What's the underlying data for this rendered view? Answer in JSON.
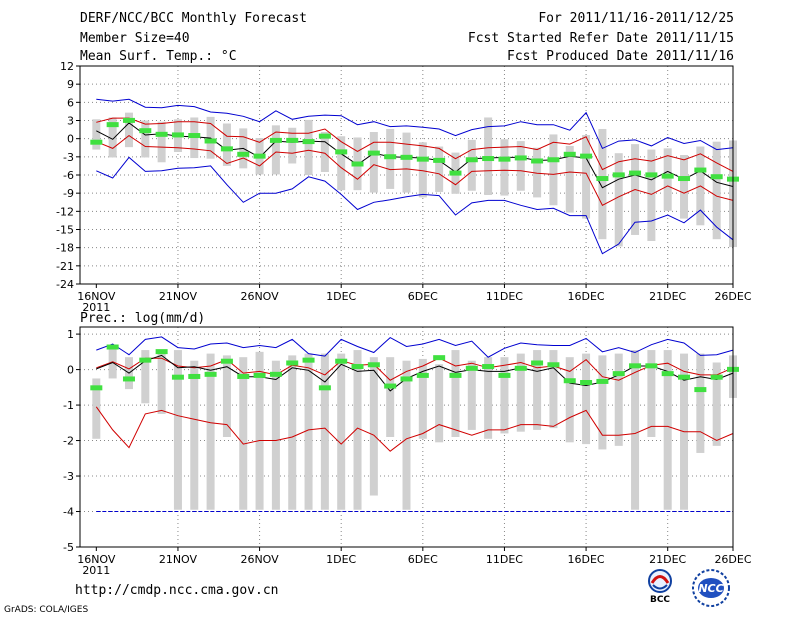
{
  "header": {
    "line1_left": "DERF/NCC/BCC Monthly Forecast",
    "line2_left": "Member Size=40",
    "line3_left": "Mean Surf. Temp.: °C",
    "line1_right": "For 2011/11/16-2011/12/25",
    "line2_right": "Fcst Started Refer Date 2011/11/15",
    "line3_right": "Fcst Produced Date 2011/11/16"
  },
  "footer": {
    "url": "http://cmdp.ncc.cma.gov.cn",
    "credit": "GrADS: COLA/IGES",
    "logo_bcc_text": "BCC",
    "logo_ncc_text": "NCC"
  },
  "colors": {
    "bar": "#d0d0d0",
    "median": "#000000",
    "quartile": "#d00000",
    "extreme": "#0000d0",
    "mark": "#40e040",
    "grid": "#888888"
  },
  "chart_data": [
    {
      "type": "line",
      "name": "temperature",
      "ylabel": "Mean Surf. Temp.: °C",
      "ylim": [
        -24,
        12
      ],
      "yticks": [
        -24,
        -21,
        -18,
        -15,
        -12,
        -9,
        -6,
        -3,
        0,
        3,
        6,
        9,
        12
      ],
      "xticks": [
        "16NOV",
        "21NOV",
        "26NOV",
        "1DEC",
        "6DEC",
        "11DEC",
        "16DEC",
        "21DEC",
        "26DEC"
      ],
      "x_year": "2011",
      "grid": true,
      "days": 40,
      "series": [
        {
          "name": "max",
          "values": [
            6.5,
            6.2,
            6.5,
            5.2,
            5.1,
            5.5,
            5.3,
            4.4,
            4.2,
            3.7,
            2.8,
            4.6,
            3.2,
            3.7,
            3.9,
            3.8,
            2.3,
            2.8,
            2.0,
            2.1,
            1.9,
            1.6,
            0.5,
            1.5,
            2.0,
            2.1,
            2.8,
            2.3,
            2.3,
            1.4,
            4.3,
            -1.6,
            -0.4,
            -0.2,
            -1.2,
            0.2,
            -0.8,
            -0.3,
            -1.8,
            -1.5
          ]
        },
        {
          "name": "upper",
          "values": [
            2.7,
            3.4,
            3.4,
            2.4,
            2.5,
            2.8,
            2.8,
            2.5,
            0.4,
            0.3,
            -0.6,
            1.1,
            0.9,
            0.9,
            1.6,
            -0.5,
            -2.1,
            -0.6,
            -0.6,
            -0.9,
            -1.2,
            -1.6,
            -3.3,
            -1.8,
            -1.5,
            -1.4,
            -1.3,
            -1.8,
            -0.6,
            -0.9,
            0.3,
            -5.1,
            -3.8,
            -3.3,
            -3.7,
            -2.8,
            -3.5,
            -2.5,
            -4.0,
            -5.4
          ]
        },
        {
          "name": "median",
          "values": [
            1.3,
            -0.1,
            2.6,
            0.6,
            0.8,
            0.4,
            0.3,
            0.1,
            -1.9,
            -1.6,
            -3.1,
            -0.4,
            -0.6,
            -0.4,
            -0.5,
            -2.5,
            -4.3,
            -2.4,
            -3.0,
            -3.1,
            -3.2,
            -3.6,
            -5.5,
            -3.3,
            -3.2,
            -3.1,
            -3.1,
            -3.6,
            -3.5,
            -2.9,
            -3.2,
            -8.1,
            -6.7,
            -6.0,
            -6.8,
            -5.4,
            -6.7,
            -5.3,
            -7.2,
            -7.9
          ]
        },
        {
          "name": "lower",
          "values": [
            -0.5,
            -1.6,
            0.5,
            -1.3,
            -1.4,
            -1.5,
            -1.7,
            -2.0,
            -4.1,
            -3.2,
            -4.5,
            -2.2,
            -2.4,
            -1.9,
            -2.4,
            -4.8,
            -6.7,
            -4.3,
            -5.1,
            -5.0,
            -5.3,
            -5.8,
            -7.6,
            -5.4,
            -5.3,
            -5.2,
            -5.3,
            -5.7,
            -5.9,
            -5.5,
            -5.7,
            -11.0,
            -9.6,
            -8.4,
            -9.2,
            -7.8,
            -9.0,
            -7.8,
            -9.5,
            -10.2
          ]
        },
        {
          "name": "min",
          "values": [
            -5.3,
            -6.5,
            -3.1,
            -5.4,
            -5.3,
            -4.9,
            -4.8,
            -4.5,
            -7.6,
            -10.5,
            -9.0,
            -9.0,
            -8.3,
            -6.3,
            -7.0,
            -9.2,
            -11.7,
            -10.5,
            -10.1,
            -9.6,
            -9.2,
            -9.4,
            -12.6,
            -10.6,
            -10.2,
            -10.2,
            -11.0,
            -11.7,
            -11.5,
            -12.7,
            -12.7,
            -19.0,
            -17.4,
            -13.8,
            -13.6,
            -12.6,
            -13.9,
            -11.8,
            -14.6,
            -16.7
          ]
        },
        {
          "name": "box_top",
          "values": [
            3.2,
            3.5,
            4.3,
            3.0,
            2.8,
            3.2,
            3.5,
            3.6,
            2.5,
            1.7,
            0.1,
            2.2,
            1.8,
            3.1,
            1.1,
            0.4,
            0.2,
            1.1,
            1.6,
            1.0,
            -0.6,
            -1.3,
            -2.3,
            -0.2,
            3.5,
            -0.1,
            -0.4,
            -1.5,
            0.7,
            -1.2,
            0.6,
            1.6,
            -2.4,
            -0.9,
            -1.8,
            -1.6,
            -2.7,
            -1.3,
            -0.5,
            -0.3
          ]
        },
        {
          "name": "box_bottom",
          "values": [
            -1.8,
            -3.1,
            -1.4,
            -3.1,
            -3.9,
            -2.2,
            -3.2,
            -3.3,
            -4.5,
            -4.9,
            -5.9,
            -5.9,
            -4.1,
            -6.0,
            -5.5,
            -8.5,
            -8.5,
            -8.9,
            -8.3,
            -8.9,
            -9.7,
            -8.8,
            -9.1,
            -8.6,
            -9.3,
            -9.4,
            -8.6,
            -9.7,
            -11.0,
            -12.2,
            -13.2,
            -16.6,
            -17.8,
            -15.9,
            -16.9,
            -11.9,
            -13.2,
            -14.3,
            -16.6,
            -17.9
          ]
        },
        {
          "name": "mark",
          "values": [
            -0.5,
            2.4,
            3.1,
            1.4,
            0.8,
            0.7,
            0.6,
            -0.3,
            -1.6,
            -2.5,
            -2.8,
            -0.2,
            -0.2,
            -0.4,
            0.5,
            -2.1,
            -4.1,
            -2.3,
            -2.9,
            -3.0,
            -3.3,
            -3.5,
            -5.6,
            -3.4,
            -3.2,
            -3.3,
            -3.1,
            -3.6,
            -3.4,
            -2.5,
            -2.8,
            -6.5,
            -5.9,
            -5.6,
            -5.9,
            -6.1,
            -6.5,
            -5.1,
            -6.2,
            -6.6
          ]
        }
      ]
    },
    {
      "type": "line",
      "name": "precipitation",
      "ylabel": "Prec.: log(mm/d)",
      "ylim": [
        -5,
        1.2
      ],
      "yticks": [
        -5,
        -4,
        -3,
        -2,
        -1,
        0,
        1
      ],
      "xticks": [
        "16NOV",
        "21NOV",
        "26NOV",
        "1DEC",
        "6DEC",
        "11DEC",
        "16DEC",
        "21DEC",
        "26DEC"
      ],
      "x_year": "2011",
      "grid": true,
      "days": 40,
      "series": [
        {
          "name": "max",
          "values": [
            0.55,
            0.72,
            0.42,
            0.85,
            0.92,
            0.62,
            0.58,
            0.72,
            0.75,
            0.62,
            0.68,
            0.62,
            0.85,
            0.45,
            0.38,
            0.85,
            0.65,
            0.48,
            0.9,
            0.65,
            0.72,
            0.85,
            0.68,
            0.8,
            0.35,
            0.6,
            0.75,
            0.7,
            0.68,
            0.68,
            0.88,
            0.5,
            0.62,
            0.48,
            0.7,
            0.85,
            0.75,
            0.4,
            0.42,
            0.55
          ]
        },
        {
          "name": "upper",
          "values": [
            0.05,
            0.22,
            0.02,
            0.32,
            0.32,
            0.1,
            0.05,
            0.1,
            0.28,
            -0.1,
            -0.05,
            -0.15,
            0.12,
            0.05,
            -0.15,
            0.25,
            0.12,
            0.15,
            -0.3,
            -0.05,
            0.1,
            0.32,
            0.1,
            0.18,
            0.05,
            0.12,
            0.2,
            0.05,
            0.1,
            -0.05,
            0.28,
            -0.2,
            -0.3,
            -0.08,
            0.12,
            0.18,
            -0.05,
            -0.15,
            -0.15,
            0.05
          ]
        },
        {
          "name": "median",
          "values": [
            0.02,
            0.2,
            -0.1,
            0.25,
            0.4,
            0.05,
            0.08,
            -0.02,
            0.08,
            -0.2,
            -0.2,
            -0.28,
            0.05,
            -0.02,
            -0.35,
            0.15,
            -0.05,
            -0.02,
            -0.6,
            -0.25,
            -0.05,
            0.1,
            -0.08,
            0.0,
            -0.05,
            -0.05,
            0.05,
            -0.05,
            0.05,
            -0.38,
            -0.45,
            -0.35,
            -0.15,
            0.1,
            0.1,
            -0.05,
            -0.3,
            -0.2,
            -0.28,
            -0.1
          ]
        },
        {
          "name": "lower",
          "values": [
            -1.05,
            -1.7,
            -2.2,
            -1.25,
            -1.15,
            -1.3,
            -1.4,
            -1.5,
            -1.55,
            -2.1,
            -2.0,
            -2.0,
            -1.9,
            -1.7,
            -1.65,
            -2.1,
            -1.65,
            -1.85,
            -2.3,
            -1.95,
            -1.8,
            -1.55,
            -1.7,
            -1.85,
            -1.7,
            -1.7,
            -1.55,
            -1.55,
            -1.6,
            -1.35,
            -1.15,
            -1.85,
            -1.85,
            -1.8,
            -1.6,
            -1.6,
            -1.75,
            -1.75,
            -2.0,
            -1.8
          ]
        },
        {
          "name": "min",
          "values": [
            -4.0,
            -4.0,
            -4.0,
            -4.0,
            -4.0,
            -4.0,
            -4.0,
            -4.0,
            -4.0,
            -4.0,
            -4.0,
            -4.0,
            -4.0,
            -4.0,
            -4.0,
            -4.0,
            -4.0,
            -4.0,
            -4.0,
            -4.0,
            -4.0,
            -4.0,
            -4.0,
            -4.0,
            -4.0,
            -4.0,
            -4.0,
            -4.0,
            -4.0,
            -4.0,
            -4.0,
            -4.0,
            -4.0,
            -4.0,
            -4.0,
            -4.0,
            -4.0,
            -4.0,
            -4.0,
            -4.0
          ]
        },
        {
          "name": "box_top",
          "values": [
            -0.25,
            0.62,
            0.35,
            0.55,
            0.55,
            0.55,
            0.25,
            0.45,
            0.4,
            0.35,
            0.5,
            0.25,
            0.4,
            0.45,
            0.45,
            0.45,
            0.55,
            0.35,
            0.35,
            0.25,
            0.3,
            0.15,
            0.55,
            0.25,
            0.35,
            0.35,
            0.45,
            0.55,
            0.55,
            0.35,
            0.45,
            0.4,
            0.45,
            0.55,
            0.55,
            0.55,
            0.45,
            0.45,
            0.2,
            0.4
          ]
        },
        {
          "name": "box_bottom",
          "values": [
            -1.95,
            -0.25,
            -0.55,
            -0.95,
            -1.25,
            -3.95,
            -3.95,
            -3.95,
            -1.9,
            -3.95,
            -3.95,
            -3.95,
            -3.95,
            -3.95,
            -3.95,
            -3.95,
            -3.95,
            -3.55,
            -1.9,
            -3.95,
            -1.95,
            -2.05,
            -1.9,
            -1.7,
            -1.95,
            -1.8,
            -1.75,
            -1.7,
            -1.65,
            -2.05,
            -2.1,
            -2.25,
            -2.15,
            -3.95,
            -1.9,
            -3.95,
            -3.95,
            -2.35,
            -2.15,
            -0.8
          ]
        },
        {
          "name": "mark",
          "values": [
            -0.5,
            0.65,
            -0.25,
            0.28,
            0.52,
            -0.2,
            -0.18,
            -0.12,
            0.25,
            -0.18,
            -0.15,
            -0.12,
            0.2,
            0.28,
            -0.5,
            0.25,
            0.1,
            0.15,
            -0.45,
            -0.25,
            -0.15,
            0.35,
            -0.15,
            0.05,
            0.1,
            -0.15,
            0.05,
            0.2,
            0.15,
            -0.3,
            -0.35,
            -0.32,
            -0.1,
            0.12,
            0.12,
            -0.1,
            -0.2,
            -0.55,
            -0.2,
            0.02
          ]
        }
      ]
    }
  ]
}
